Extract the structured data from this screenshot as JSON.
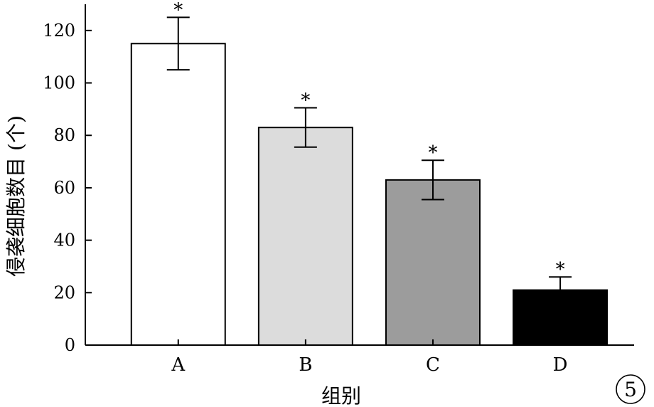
{
  "chart_data": {
    "type": "bar",
    "categories": [
      "A",
      "B",
      "C",
      "D"
    ],
    "values": [
      115,
      83,
      63,
      21
    ],
    "errors": [
      10,
      7.5,
      7.5,
      5
    ],
    "colors": [
      "#ffffff",
      "#dcdcdc",
      "#9c9c9c",
      "#000000"
    ],
    "significance": [
      "*",
      "*",
      "*",
      "*"
    ],
    "xlabel": "组别",
    "ylabel": "侵袭细胞数目 (个)",
    "ylim": [
      0,
      130
    ],
    "yticks": [
      0,
      20,
      40,
      60,
      80,
      100,
      120
    ],
    "grid": false,
    "panel_tag": "5"
  }
}
